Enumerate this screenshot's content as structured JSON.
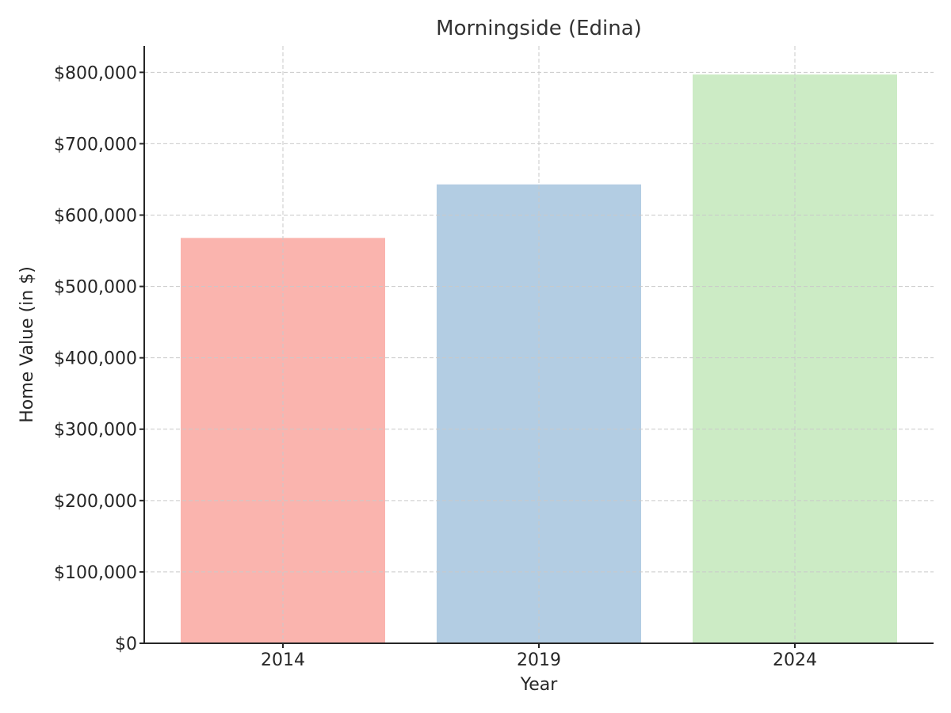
{
  "chart_data": {
    "type": "bar",
    "title": "Morningside (Edina)",
    "xlabel": "Year",
    "ylabel": "Home Value (in $)",
    "categories": [
      "2014",
      "2019",
      "2024"
    ],
    "values": [
      568000,
      643000,
      797000
    ],
    "colors": [
      "#fab4ae",
      "#b3cde3",
      "#ccebc5"
    ],
    "ylim": [
      0,
      837000
    ],
    "yticks": [
      0,
      100000,
      200000,
      300000,
      400000,
      500000,
      600000,
      700000,
      800000
    ],
    "ytick_labels": [
      "$0",
      "$100,000",
      "$200,000",
      "$300,000",
      "$400,000",
      "$500,000",
      "$600,000",
      "$700,000",
      "$800,000"
    ],
    "grid": true,
    "legend": "none"
  }
}
